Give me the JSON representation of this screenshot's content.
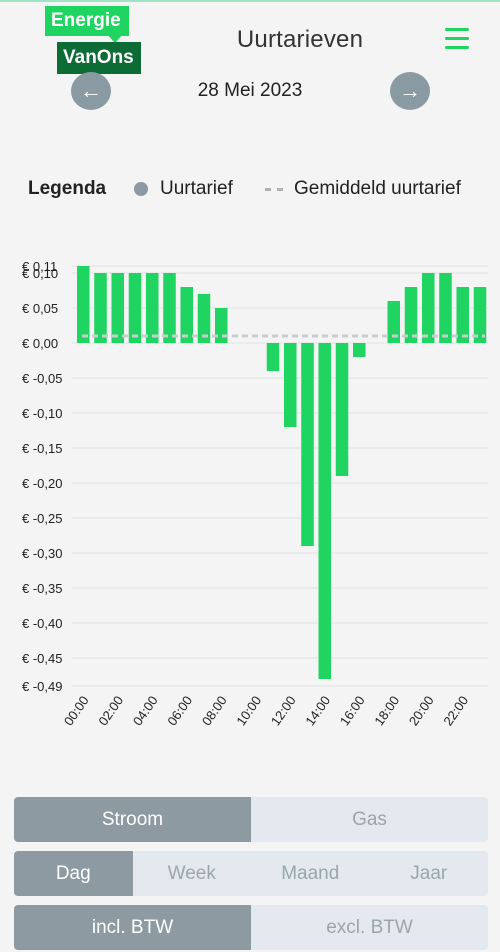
{
  "header": {
    "logo_line1": "Energie",
    "logo_line2": "VanOns",
    "title": "Uurtarieven",
    "menu_icon": "hamburger-menu-icon"
  },
  "date_nav": {
    "prev_icon": "arrow-left-icon",
    "date": "28 Mei 2023",
    "next_icon": "arrow-right-icon"
  },
  "legend": {
    "title": "Legenda",
    "item1": "Uurtarief",
    "item2": "Gemiddeld uurtarief"
  },
  "colors": {
    "bar": "#1fd460",
    "average_line": "#c9cdd0",
    "active": "#8d9aa2",
    "inactive": "#e4e9ef",
    "brand_dark": "#0d6b35"
  },
  "chart_data": {
    "type": "bar",
    "categories": [
      "00:00",
      "01:00",
      "02:00",
      "03:00",
      "04:00",
      "05:00",
      "06:00",
      "07:00",
      "08:00",
      "09:00",
      "10:00",
      "11:00",
      "12:00",
      "13:00",
      "14:00",
      "15:00",
      "16:00",
      "17:00",
      "18:00",
      "19:00",
      "20:00",
      "21:00",
      "22:00",
      "23:00"
    ],
    "x_tick_labels": [
      "00:00",
      "02:00",
      "04:00",
      "06:00",
      "08:00",
      "10:00",
      "12:00",
      "14:00",
      "16:00",
      "18:00",
      "20:00",
      "22:00"
    ],
    "series": [
      {
        "name": "Uurtarief",
        "values": [
          0.11,
          0.1,
          0.1,
          0.1,
          0.1,
          0.1,
          0.08,
          0.07,
          0.05,
          0,
          0,
          -0.04,
          -0.12,
          -0.29,
          -0.48,
          -0.19,
          -0.02,
          0,
          0.06,
          0.08,
          0.1,
          0.1,
          0.08,
          0.08
        ]
      }
    ],
    "average": 0.01,
    "y_tick_labels": [
      "€ 0,11",
      "€ 0,10",
      "€ 0,05",
      "€ 0,00",
      "€ -0,05",
      "€ -0,10",
      "€ -0,15",
      "€ -0,20",
      "€ -0,25",
      "€ -0,30",
      "€ -0,35",
      "€ -0,40",
      "€ -0,45",
      "€ -0,49"
    ],
    "y_ticks": [
      0.11,
      0.1,
      0.05,
      0,
      -0.05,
      -0.1,
      -0.15,
      -0.2,
      -0.25,
      -0.3,
      -0.35,
      -0.4,
      -0.45,
      -0.49
    ],
    "ylim": [
      -0.49,
      0.11
    ],
    "grid": true,
    "legend_position": "top"
  },
  "toggles": {
    "energy": {
      "options": [
        "Stroom",
        "Gas"
      ],
      "selected": "Stroom"
    },
    "period": {
      "options": [
        "Dag",
        "Week",
        "Maand",
        "Jaar"
      ],
      "selected": "Dag"
    },
    "vat": {
      "options": [
        "incl. BTW",
        "excl. BTW"
      ],
      "selected": "incl. BTW"
    }
  }
}
